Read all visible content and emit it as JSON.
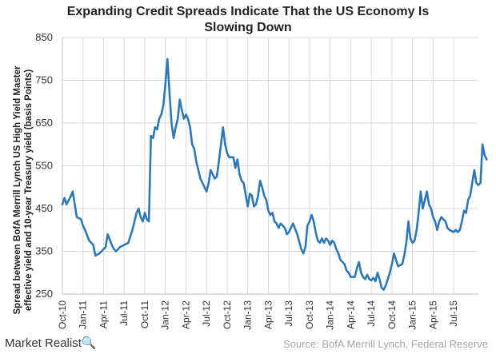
{
  "chart_data": {
    "type": "line",
    "title_line1": "Expanding Credit Spreads Indicate That the US Economy Is",
    "title_line2": "Slowing Down",
    "ylabel_line1": "Spread between BofA Merrill Lynch US High Yield Master",
    "ylabel_line2": "effective yield and 10-year Treasury yield (basis Points)",
    "xlabel": "",
    "ylim": [
      250,
      850
    ],
    "yticks": [
      250,
      350,
      450,
      550,
      650,
      750,
      850
    ],
    "xticks": [
      "Oct-10",
      "Jan-11",
      "Apr-11",
      "Jul-11",
      "Oct-11",
      "Jan-12",
      "Apr-12",
      "Jul-12",
      "Oct-12",
      "Jan-13",
      "Apr-13",
      "Jul-13",
      "Oct-13",
      "Jan-14",
      "Apr-14",
      "Jul-14",
      "Oct-14",
      "Jan-15",
      "Apr-15",
      "Jul-15"
    ],
    "grid": true,
    "line_color": "#2e78b8",
    "series": [
      {
        "points": [
          [
            0,
            460
          ],
          [
            0.1,
            475
          ],
          [
            0.2,
            460
          ],
          [
            0.4,
            478
          ],
          [
            0.5,
            490
          ],
          [
            0.7,
            430
          ],
          [
            0.9,
            425
          ],
          [
            1.0,
            410
          ],
          [
            1.1,
            400
          ],
          [
            1.3,
            375
          ],
          [
            1.5,
            365
          ],
          [
            1.6,
            340
          ],
          [
            1.8,
            345
          ],
          [
            2.0,
            355
          ],
          [
            2.1,
            360
          ],
          [
            2.2,
            390
          ],
          [
            2.4,
            365
          ],
          [
            2.5,
            355
          ],
          [
            2.6,
            350
          ],
          [
            2.8,
            360
          ],
          [
            3.0,
            365
          ],
          [
            3.2,
            370
          ],
          [
            3.4,
            400
          ],
          [
            3.6,
            440
          ],
          [
            3.7,
            450
          ],
          [
            3.8,
            430
          ],
          [
            3.9,
            420
          ],
          [
            4.0,
            440
          ],
          [
            4.1,
            425
          ],
          [
            4.2,
            420
          ],
          [
            4.3,
            620
          ],
          [
            4.4,
            615
          ],
          [
            4.5,
            640
          ],
          [
            4.6,
            635
          ],
          [
            4.7,
            660
          ],
          [
            4.8,
            670
          ],
          [
            4.9,
            690
          ],
          [
            5.0,
            740
          ],
          [
            5.1,
            800
          ],
          [
            5.2,
            720
          ],
          [
            5.3,
            650
          ],
          [
            5.4,
            615
          ],
          [
            5.5,
            640
          ],
          [
            5.6,
            660
          ],
          [
            5.7,
            705
          ],
          [
            5.8,
            680
          ],
          [
            5.9,
            660
          ],
          [
            6.0,
            670
          ],
          [
            6.1,
            660
          ],
          [
            6.2,
            640
          ],
          [
            6.3,
            600
          ],
          [
            6.4,
            590
          ],
          [
            6.5,
            560
          ],
          [
            6.6,
            540
          ],
          [
            6.7,
            520
          ],
          [
            6.9,
            500
          ],
          [
            7.0,
            490
          ],
          [
            7.1,
            510
          ],
          [
            7.2,
            540
          ],
          [
            7.3,
            530
          ],
          [
            7.4,
            520
          ],
          [
            7.5,
            525
          ],
          [
            7.6,
            560
          ],
          [
            7.7,
            600
          ],
          [
            7.8,
            640
          ],
          [
            7.9,
            600
          ],
          [
            8.0,
            580
          ],
          [
            8.1,
            570
          ],
          [
            8.3,
            570
          ],
          [
            8.4,
            545
          ],
          [
            8.5,
            565
          ],
          [
            8.6,
            530
          ],
          [
            8.7,
            515
          ],
          [
            8.8,
            510
          ],
          [
            9.0,
            455
          ],
          [
            9.1,
            485
          ],
          [
            9.2,
            480
          ],
          [
            9.3,
            455
          ],
          [
            9.4,
            460
          ],
          [
            9.5,
            480
          ],
          [
            9.6,
            515
          ],
          [
            9.7,
            500
          ],
          [
            9.8,
            480
          ],
          [
            9.9,
            470
          ],
          [
            10.0,
            445
          ],
          [
            10.1,
            435
          ],
          [
            10.2,
            440
          ],
          [
            10.3,
            420
          ],
          [
            10.4,
            415
          ],
          [
            10.5,
            405
          ],
          [
            10.6,
            415
          ],
          [
            10.7,
            410
          ],
          [
            10.8,
            405
          ],
          [
            10.9,
            390
          ],
          [
            11.0,
            395
          ],
          [
            11.2,
            415
          ],
          [
            11.4,
            390
          ],
          [
            11.6,
            355
          ],
          [
            11.7,
            345
          ],
          [
            11.8,
            360
          ],
          [
            11.9,
            410
          ],
          [
            12.0,
            420
          ],
          [
            12.1,
            435
          ],
          [
            12.2,
            420
          ],
          [
            12.3,
            395
          ],
          [
            12.4,
            375
          ],
          [
            12.5,
            370
          ],
          [
            12.6,
            380
          ],
          [
            12.7,
            370
          ],
          [
            12.8,
            380
          ],
          [
            12.9,
            375
          ],
          [
            13.0,
            365
          ],
          [
            13.1,
            375
          ],
          [
            13.2,
            370
          ],
          [
            13.3,
            355
          ],
          [
            13.4,
            345
          ],
          [
            13.5,
            330
          ],
          [
            13.6,
            325
          ],
          [
            13.7,
            320
          ],
          [
            13.8,
            305
          ],
          [
            13.9,
            300
          ],
          [
            14.0,
            290
          ],
          [
            14.2,
            290
          ],
          [
            14.3,
            310
          ],
          [
            14.4,
            325
          ],
          [
            14.5,
            300
          ],
          [
            14.6,
            290
          ],
          [
            14.7,
            285
          ],
          [
            14.8,
            295
          ],
          [
            14.9,
            285
          ],
          [
            15.0,
            282
          ],
          [
            15.1,
            288
          ],
          [
            15.2,
            280
          ],
          [
            15.3,
            300
          ],
          [
            15.4,
            285
          ],
          [
            15.5,
            265
          ],
          [
            15.6,
            260
          ],
          [
            15.7,
            270
          ],
          [
            15.8,
            285
          ],
          [
            15.9,
            300
          ],
          [
            16.0,
            320
          ],
          [
            16.1,
            345
          ],
          [
            16.2,
            330
          ],
          [
            16.3,
            315
          ],
          [
            16.5,
            320
          ],
          [
            16.6,
            340
          ],
          [
            16.7,
            370
          ],
          [
            16.8,
            420
          ],
          [
            16.9,
            380
          ],
          [
            17.0,
            370
          ],
          [
            17.1,
            375
          ],
          [
            17.2,
            400
          ],
          [
            17.3,
            440
          ],
          [
            17.4,
            490
          ],
          [
            17.5,
            450
          ],
          [
            17.6,
            470
          ],
          [
            17.7,
            490
          ],
          [
            17.8,
            460
          ],
          [
            17.9,
            450
          ],
          [
            18.0,
            430
          ],
          [
            18.1,
            420
          ],
          [
            18.2,
            400
          ],
          [
            18.3,
            420
          ],
          [
            18.4,
            430
          ],
          [
            18.5,
            425
          ],
          [
            18.6,
            420
          ],
          [
            18.7,
            405
          ],
          [
            18.8,
            400
          ],
          [
            19.0,
            395
          ],
          [
            19.1,
            400
          ],
          [
            19.2,
            395
          ],
          [
            19.3,
            400
          ],
          [
            19.4,
            420
          ],
          [
            19.5,
            445
          ],
          [
            19.6,
            440
          ],
          [
            19.7,
            470
          ],
          [
            19.8,
            480
          ],
          [
            19.9,
            510
          ],
          [
            20.0,
            540
          ],
          [
            20.1,
            510
          ],
          [
            20.2,
            505
          ],
          [
            20.3,
            510
          ],
          [
            20.4,
            600
          ],
          [
            20.5,
            575
          ],
          [
            20.6,
            565
          ]
        ]
      }
    ]
  },
  "footer": {
    "brand_text": "Market Realist",
    "brand_mark": "🔍",
    "source": "Source: BofA Merrill Lynch, Federal Reserve"
  }
}
